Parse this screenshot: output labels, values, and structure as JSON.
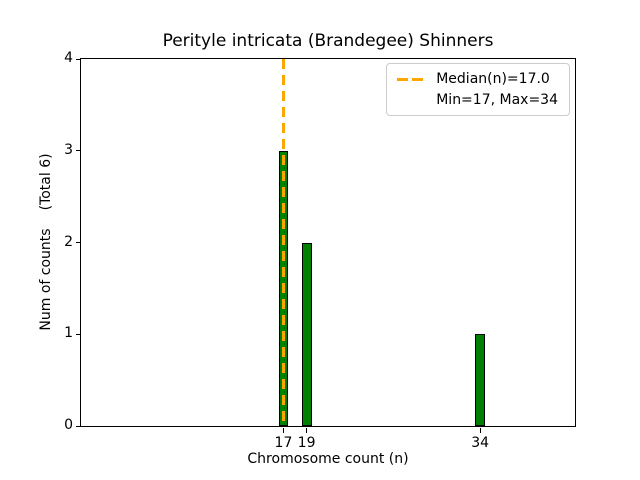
{
  "chart_data": {
    "type": "bar",
    "title": "Perityle intricata (Brandegee) Shinners",
    "xlabel": "Chromosome count (n)",
    "ylabel": "Num of counts",
    "ylabel_note": "(Total 6)",
    "x": [
      17,
      19,
      34
    ],
    "counts": [
      3,
      2,
      1
    ],
    "total": 6,
    "median": 17.0,
    "min": 17,
    "max": 34,
    "bar_width": 0.85,
    "bar_color": "#008000",
    "bar_edge_color": "#000000",
    "median_line_color": "#FFA500",
    "xlim": [
      -0.5,
      42.2
    ],
    "ylim": [
      0,
      4
    ],
    "xticks": [
      17,
      19,
      34
    ],
    "yticks": [
      0,
      1,
      2,
      3,
      4
    ],
    "grid": false,
    "legend": {
      "position": "upper right",
      "entries": [
        "Median(n)=17.0",
        "Min=17, Max=34"
      ]
    }
  }
}
